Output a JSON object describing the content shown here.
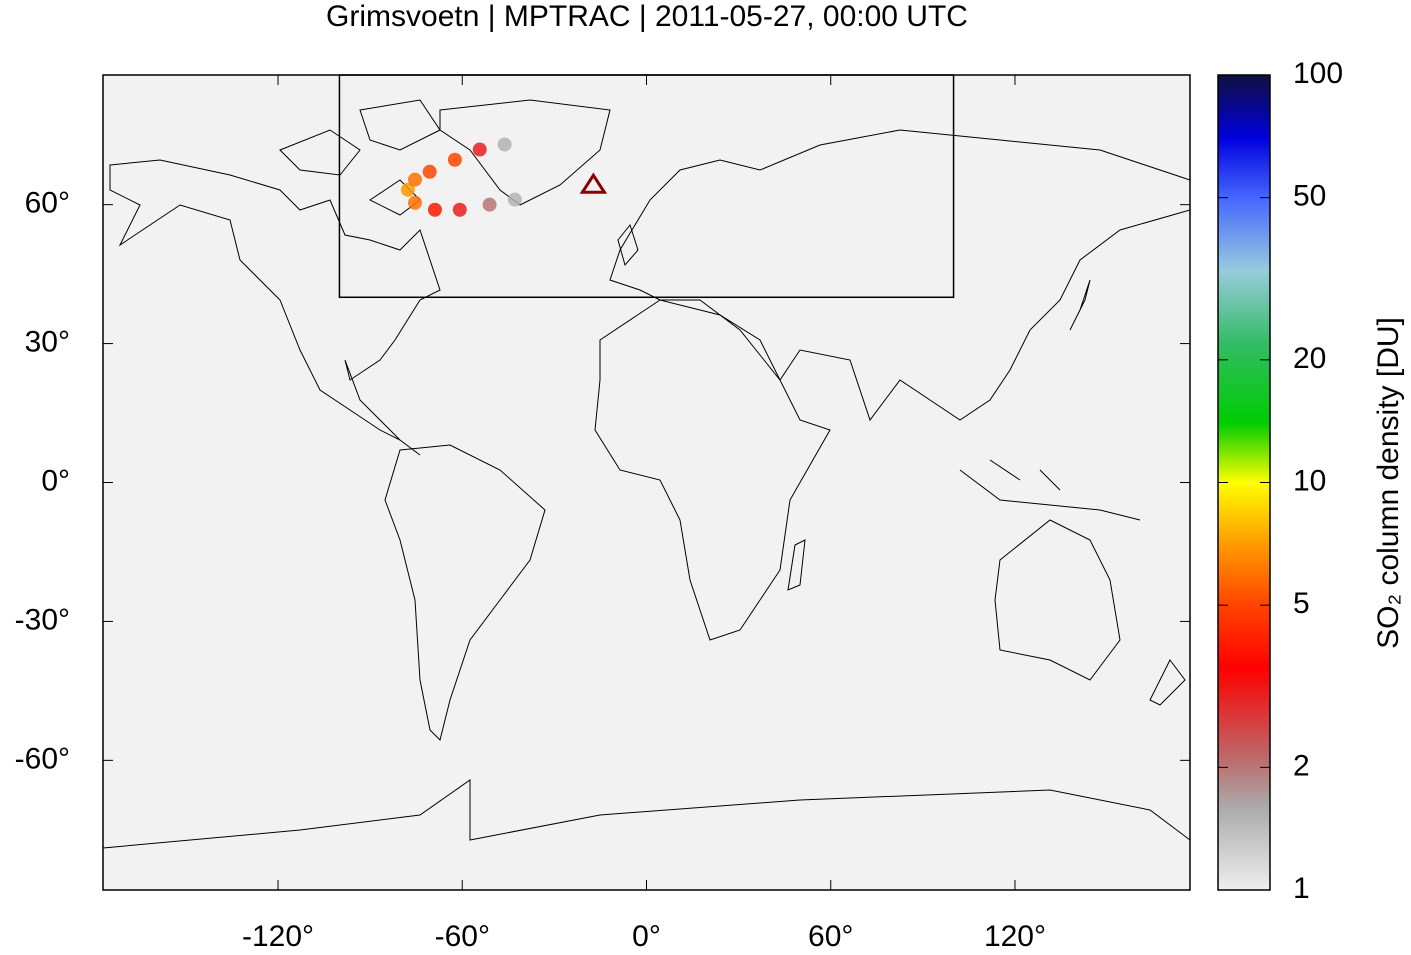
{
  "chart_data": {
    "type": "map",
    "title": "Grimsvoetn | MPTRAC | 2011-05-27, 00:00 UTC",
    "xlim": [
      -177,
      177
    ],
    "ylim": [
      -88,
      88
    ],
    "xticks": [
      {
        "value": -120,
        "label": "-120°"
      },
      {
        "value": -60,
        "label": "-60°"
      },
      {
        "value": 0,
        "label": "0°"
      },
      {
        "value": 60,
        "label": "60°"
      },
      {
        "value": 120,
        "label": "120°"
      }
    ],
    "yticks": [
      {
        "value": -60,
        "label": "-60°"
      },
      {
        "value": -30,
        "label": "-30°"
      },
      {
        "value": 0,
        "label": "0°"
      },
      {
        "value": 30,
        "label": "30°"
      },
      {
        "value": 60,
        "label": "60°"
      }
    ],
    "region_box": {
      "lon": [
        -100,
        100
      ],
      "lat": [
        40,
        90
      ]
    },
    "volcano": {
      "lon": -17.3,
      "lat": 64.4,
      "color": "#8b0000"
    },
    "plume": {
      "lon": [
        -42.9,
        -51.1,
        -60.8,
        -68.9,
        -75.4,
        -77.7,
        -75.4,
        -70.6,
        -62.4,
        -54.3,
        -46.2
      ],
      "lat": [
        61.1,
        60.0,
        58.9,
        58.9,
        60.4,
        63.2,
        65.4,
        67.1,
        69.7,
        71.9,
        73.0
      ],
      "values": [
        1.5,
        2,
        3,
        4,
        6,
        7,
        6,
        5,
        5,
        3,
        1.5
      ]
    },
    "colorbar": {
      "label": "SO₂ column density [DU]",
      "log": true,
      "lim": [
        1,
        100
      ],
      "ticks": [
        1,
        2,
        5,
        10,
        20,
        50,
        100
      ],
      "colormap": [
        {
          "value": 1,
          "color": "#eeeeee"
        },
        {
          "value": 1.6,
          "color": "#aaaaaa"
        },
        {
          "value": 2.2,
          "color": "#c06060"
        },
        {
          "value": 3.5,
          "color": "#ff0000"
        },
        {
          "value": 5,
          "color": "#ff4400"
        },
        {
          "value": 7,
          "color": "#ff9900"
        },
        {
          "value": 10,
          "color": "#ffff00"
        },
        {
          "value": 14,
          "color": "#00cc00"
        },
        {
          "value": 22,
          "color": "#33bb66"
        },
        {
          "value": 33,
          "color": "#99ccdd"
        },
        {
          "value": 50,
          "color": "#4466ff"
        },
        {
          "value": 70,
          "color": "#0000dd"
        },
        {
          "value": 100,
          "color": "#101040"
        }
      ]
    }
  }
}
